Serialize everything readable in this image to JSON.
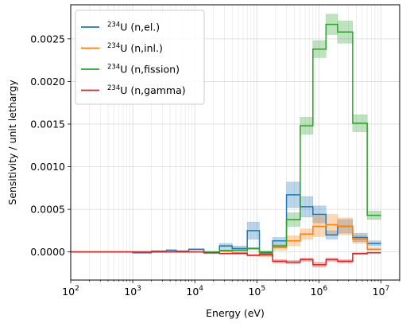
{
  "chart_data": {
    "type": "line",
    "step": "post",
    "xlabel": "Energy (eV)",
    "ylabel": "Sensitivity / unit lethargy",
    "xscale": "log",
    "xlim": [
      100,
      20000000
    ],
    "ylim": [
      -0.00033,
      0.0029
    ],
    "yticks": [
      0.0,
      0.0005,
      0.001,
      0.0015,
      0.002,
      0.0025
    ],
    "ytick_labels": [
      "0.0000",
      "0.0005",
      "0.0010",
      "0.0015",
      "0.0020",
      "0.0025"
    ],
    "xtick_values": [
      100,
      1000,
      10000,
      100000,
      1000000,
      10000000
    ],
    "xtick_labels": [
      {
        "base": "10",
        "exp": "2"
      },
      {
        "base": "10",
        "exp": "3"
      },
      {
        "base": "10",
        "exp": "4"
      },
      {
        "base": "10",
        "exp": "5"
      },
      {
        "base": "10",
        "exp": "6"
      },
      {
        "base": "10",
        "exp": "7"
      }
    ],
    "grid": true,
    "legend_position": "top-left",
    "bin_edges": [
      100,
      1000,
      2000,
      3500,
      5000,
      8000,
      14000,
      25000,
      40000,
      70000,
      110000,
      180000,
      300000,
      500000,
      800000,
      1300000,
      2000000,
      3500000,
      6000000,
      10000000
    ],
    "series": [
      {
        "name_sup": "234",
        "name_rest": "U (n,el.)",
        "color": "#1f77b4",
        "values": [
          0.0,
          -1e-05,
          1e-05,
          2e-05,
          1e-05,
          3e-05,
          -1e-05,
          7e-05,
          4e-05,
          0.00025,
          -1e-05,
          0.00013,
          0.00067,
          0.00053,
          0.00044,
          0.0002,
          0.0003,
          0.00017,
          0.0001
        ],
        "errors": [
          0.0,
          5e-06,
          5e-06,
          6e-06,
          5e-06,
          8e-06,
          1e-05,
          3e-05,
          3e-05,
          0.0001,
          2e-05,
          4e-05,
          0.00015,
          0.00012,
          0.0001,
          5e-05,
          8e-05,
          5e-05,
          3e-05
        ]
      },
      {
        "name_sup": "234",
        "name_rest": "U (n,inl.)",
        "color": "#ff7f0e",
        "values": [
          0.0,
          0.0,
          0.0,
          0.0,
          0.0,
          0.0,
          0.0,
          1e-05,
          -1e-05,
          4e-05,
          -4e-05,
          5e-05,
          0.00013,
          0.00021,
          0.0003,
          0.00032,
          0.0003,
          0.00015,
          3e-05
        ],
        "errors": [
          0.0,
          0.0,
          0.0,
          0.0,
          0.0,
          0.0,
          5e-06,
          8e-06,
          8e-06,
          1e-05,
          2e-05,
          3e-05,
          6e-05,
          6e-05,
          0.00012,
          0.00012,
          0.0001,
          5e-05,
          2e-05
        ]
      },
      {
        "name_sup": "234",
        "name_rest": "U (n,fission)",
        "color": "#2ca02c",
        "values": [
          0.0,
          0.0,
          0.0,
          0.0,
          0.0,
          0.0,
          0.0,
          2e-05,
          2e-05,
          4e-05,
          0.0,
          7e-05,
          0.00038,
          0.00148,
          0.00238,
          0.00267,
          0.00258,
          0.00151,
          0.00043
        ],
        "errors": [
          0.0,
          0.0,
          0.0,
          0.0,
          0.0,
          0.0,
          0.0,
          5e-06,
          5e-06,
          1e-05,
          5e-06,
          2e-05,
          8e-05,
          0.0001,
          0.0001,
          0.00012,
          0.00013,
          0.0001,
          5e-05
        ]
      },
      {
        "name_sup": "234",
        "name_rest": "U (n,gamma)",
        "color": "#d62728",
        "values": [
          0.0,
          0.0,
          0.0,
          0.0,
          0.0,
          0.0,
          -1e-05,
          -2e-05,
          -2e-05,
          -4e-05,
          -3e-05,
          -0.00011,
          -0.00012,
          -9e-05,
          -0.00015,
          -9e-05,
          -0.00011,
          -2e-05,
          -1e-05
        ],
        "errors": [
          0.0,
          0.0,
          0.0,
          0.0,
          0.0,
          0.0,
          5e-06,
          5e-06,
          5e-06,
          1e-05,
          1e-05,
          2e-05,
          2e-05,
          2e-05,
          3e-05,
          2e-05,
          2e-05,
          1e-05,
          5e-06
        ]
      }
    ]
  }
}
